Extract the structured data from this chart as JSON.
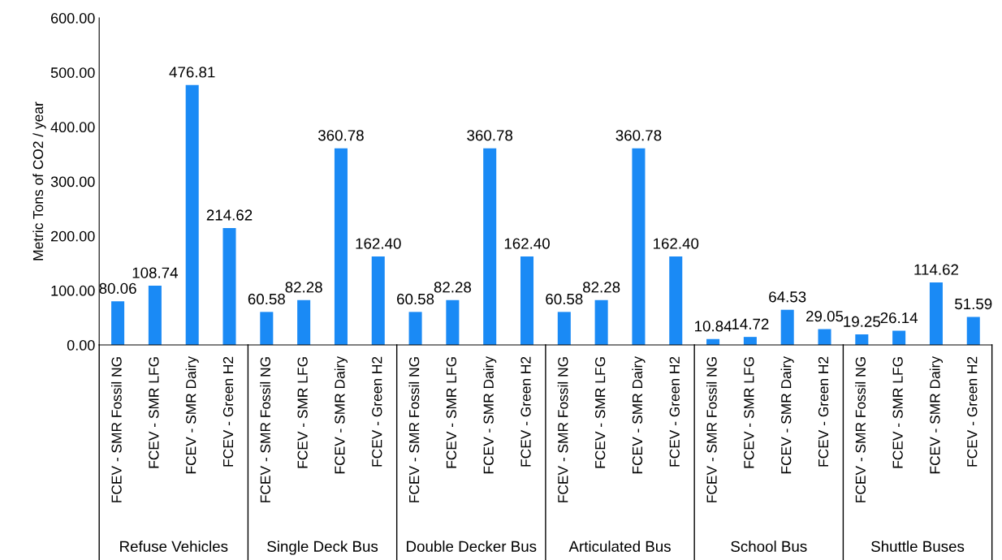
{
  "chart_data": {
    "type": "bar",
    "ylabel": "Metric Tons of CO2 / year",
    "categories": [
      "FCEV - SMR Fossil NG",
      "FCEV - SMR LFG",
      "FCEV - SMR Dairy",
      "FCEV - Green H2",
      "FCEV - SMR Fossil NG",
      "FCEV - SMR LFG",
      "FCEV - SMR Dairy",
      "FCEV - Green H2",
      "FCEV - SMR Fossil NG",
      "FCEV - SMR LFG",
      "FCEV - SMR Dairy",
      "FCEV - Green H2",
      "FCEV - SMR Fossil NG",
      "FCEV - SMR LFG",
      "FCEV - SMR Dairy",
      "FCEV - Green H2",
      "FCEV - SMR Fossil NG",
      "FCEV - SMR LFG",
      "FCEV - SMR Dairy",
      "FCEV - Green H2",
      "FCEV - SMR Fossil NG",
      "FCEV - SMR LFG",
      "FCEV - SMR Dairy",
      "FCEV - Green H2"
    ],
    "values": [
      80.06,
      108.74,
      476.81,
      214.62,
      60.58,
      82.28,
      360.78,
      162.4,
      60.58,
      82.28,
      360.78,
      162.4,
      60.58,
      82.28,
      360.78,
      162.4,
      10.84,
      14.72,
      64.53,
      29.05,
      19.25,
      26.14,
      114.62,
      51.59
    ],
    "value_labels": [
      "80.06",
      "108.74",
      "476.81",
      "214.62",
      "60.58",
      "82.28",
      "360.78",
      "162.40",
      "60.58",
      "82.28",
      "360.78",
      "162.40",
      "60.58",
      "82.28",
      "360.78",
      "162.40",
      "10.84",
      "14.72",
      "64.53",
      "29.05",
      "19.25",
      "26.14",
      "114.62",
      "51.59"
    ],
    "color": "#1a8af5",
    "ylim": [
      0,
      600
    ],
    "yticks": [
      {
        "value": 0,
        "label": "0.00"
      },
      {
        "value": 100,
        "label": "100.00"
      },
      {
        "value": 200,
        "label": "200.00"
      },
      {
        "value": 300,
        "label": "300.00"
      },
      {
        "value": 400,
        "label": "400.00"
      },
      {
        "value": 500,
        "label": "500.00"
      },
      {
        "value": 600,
        "label": "600.00"
      }
    ],
    "annotations": [
      "Refuse Vehicles",
      "Single Deck Bus",
      "Double Decker Bus",
      "Articulated Bus",
      "School Bus",
      "Shuttle Buses"
    ],
    "grid": false,
    "legend": false
  }
}
